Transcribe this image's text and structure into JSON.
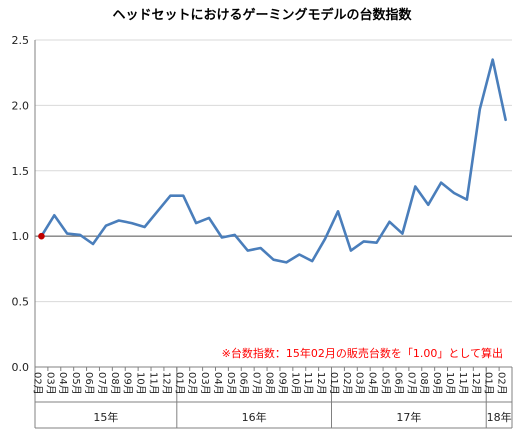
{
  "chart_data": {
    "type": "line",
    "title": "ヘッドセットにおけるゲーミングモデルの台数指数",
    "xlabel": "",
    "ylabel": "",
    "ylim": [
      0,
      2.5
    ],
    "y_ticks": [
      "0.0",
      "0.5",
      "1.0",
      "1.5",
      "2.0",
      "2.5"
    ],
    "grid": true,
    "reference_line": 1.0,
    "categories": [
      "02月",
      "03月",
      "04月",
      "05月",
      "06月",
      "07月",
      "08月",
      "09月",
      "10月",
      "11月",
      "12月",
      "01月",
      "02月",
      "03月",
      "04月",
      "05月",
      "06月",
      "07月",
      "08月",
      "09月",
      "10月",
      "11月",
      "12月",
      "01月",
      "02月",
      "03月",
      "04月",
      "05月",
      "06月",
      "07月",
      "08月",
      "09月",
      "10月",
      "11月",
      "12月",
      "01月",
      "02月"
    ],
    "year_groups": [
      {
        "label": "15年",
        "start": 0,
        "end": 10
      },
      {
        "label": "16年",
        "start": 11,
        "end": 22
      },
      {
        "label": "17年",
        "start": 23,
        "end": 34
      },
      {
        "label": "18年",
        "start": 35,
        "end": 36
      }
    ],
    "series": [
      {
        "color": "#4a7ebb",
        "values": [
          1.0,
          1.16,
          1.02,
          1.01,
          0.94,
          1.08,
          1.12,
          1.1,
          1.07,
          1.19,
          1.31,
          1.31,
          1.1,
          1.14,
          0.99,
          1.01,
          0.89,
          0.91,
          0.82,
          0.8,
          0.86,
          0.81,
          0.98,
          1.19,
          0.89,
          0.96,
          0.95,
          1.11,
          1.02,
          1.38,
          1.24,
          1.41,
          1.33,
          1.28,
          1.97,
          2.35,
          1.89
        ]
      }
    ],
    "base_point": {
      "index": 0,
      "value": 1.0,
      "color": "#c00000"
    },
    "annotation": "※台数指数：15年02月の販売台数を「1.00」として算出",
    "annotation_color": "#ff0000"
  }
}
